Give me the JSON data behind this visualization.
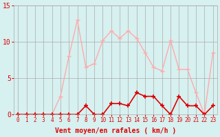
{
  "hours": [
    0,
    1,
    2,
    3,
    4,
    5,
    6,
    7,
    8,
    9,
    10,
    11,
    12,
    13,
    14,
    15,
    16,
    17,
    18,
    19,
    20,
    21,
    22,
    23
  ],
  "rafales": [
    0,
    0,
    0,
    0,
    0,
    2.5,
    8,
    13,
    6.5,
    7,
    10.2,
    11.5,
    10.5,
    11.5,
    10.5,
    8.5,
    6.5,
    6,
    10.2,
    6.2,
    6.2,
    3,
    0,
    8.5
  ],
  "moyen": [
    0,
    0,
    0,
    0,
    0,
    0,
    0,
    0,
    1.2,
    0,
    0,
    1.5,
    1.5,
    1.2,
    3,
    2.5,
    2.5,
    1.2,
    0,
    2.5,
    1.2,
    1.2,
    0,
    1.2
  ],
  "color_rafales": "#ffaaaa",
  "color_moyen": "#dd0000",
  "bg_color": "#d7f0f0",
  "grid_color": "#aaaaaa",
  "xlabel": "Vent moyen/en rafales ( km/h )",
  "xlabel_color": "#dd0000",
  "tick_color": "#dd0000",
  "ylim": [
    0,
    15
  ],
  "yticks": [
    0,
    5,
    10,
    15
  ],
  "figsize": [
    3.2,
    2.0
  ],
  "dpi": 100
}
